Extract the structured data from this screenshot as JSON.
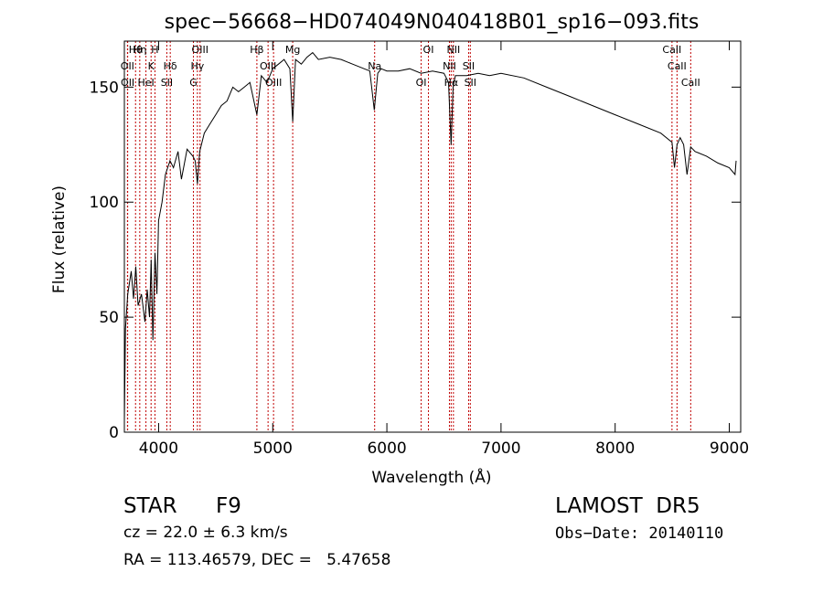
{
  "chart_data": {
    "type": "line",
    "title": "spec−56668−HD074049N040418B01_sp16−093.fits",
    "xlabel": "Wavelength (Å)",
    "ylabel": "Flux (relative)",
    "xlim": [
      3700,
      9100
    ],
    "ylim": [
      0,
      170
    ],
    "x_ticks": [
      4000,
      5000,
      6000,
      7000,
      8000,
      9000
    ],
    "y_ticks": [
      0,
      50,
      100,
      150
    ],
    "grid": false,
    "legend": "none",
    "colors": {
      "spectrum": "#000000",
      "line_markers": "#c00000",
      "axes": "#000000"
    },
    "series": [
      {
        "x": [
          3700,
          3710,
          3730,
          3760,
          3780,
          3800,
          3820,
          3850,
          3880,
          3900,
          3920,
          3935,
          3950,
          3968,
          3985,
          4000,
          4030,
          4060,
          4100,
          4130,
          4170,
          4200,
          4250,
          4300,
          4320,
          4340,
          4360,
          4400,
          4450,
          4500,
          4550,
          4600,
          4650,
          4700,
          4750,
          4800,
          4861,
          4900,
          4950,
          5000,
          5050,
          5100,
          5150,
          5175,
          5200,
          5250,
          5300,
          5350,
          5400,
          5500,
          5600,
          5700,
          5800,
          5850,
          5890,
          5920,
          5950,
          6000,
          6100,
          6200,
          6300,
          6400,
          6500,
          6540,
          6563,
          6580,
          6600,
          6700,
          6800,
          6900,
          7000,
          7200,
          7400,
          7600,
          7800,
          8000,
          8200,
          8400,
          8498,
          8520,
          8542,
          8570,
          8600,
          8630,
          8662,
          8700,
          8800,
          8900,
          9000,
          9050,
          9060
        ],
        "y": [
          5,
          45,
          60,
          70,
          58,
          72,
          55,
          60,
          48,
          62,
          50,
          75,
          40,
          78,
          60,
          92,
          100,
          112,
          118,
          115,
          122,
          110,
          123,
          120,
          118,
          108,
          122,
          130,
          134,
          138,
          142,
          144,
          150,
          148,
          150,
          152,
          138,
          155,
          152,
          158,
          160,
          162,
          158,
          135,
          162,
          160,
          163,
          165,
          162,
          163,
          162,
          160,
          158,
          157,
          140,
          156,
          158,
          157,
          157,
          158,
          156,
          157,
          156,
          152,
          125,
          150,
          155,
          155,
          156,
          155,
          156,
          154,
          150,
          146,
          142,
          138,
          134,
          130,
          126,
          115,
          125,
          128,
          125,
          112,
          124,
          122,
          120,
          117,
          115,
          112,
          118
        ]
      }
    ],
    "spectral_lines": [
      {
        "label": "Hθ",
        "wavelength": 3798
      },
      {
        "label": "OII",
        "wavelength": 3727
      },
      {
        "label": "OII",
        "wavelength": 3729
      },
      {
        "label": "Hη",
        "wavelength": 3835
      },
      {
        "label": "K",
        "wavelength": 3934
      },
      {
        "label": "HeI",
        "wavelength": 3889
      },
      {
        "label": "H",
        "wavelength": 3968
      },
      {
        "label": "Hδ",
        "wavelength": 4102
      },
      {
        "label": "SII",
        "wavelength": 4072
      },
      {
        "label": "OIII",
        "wavelength": 4363
      },
      {
        "label": "Hγ",
        "wavelength": 4340
      },
      {
        "label": "G",
        "wavelength": 4305
      },
      {
        "label": "Hβ",
        "wavelength": 4861
      },
      {
        "label": "OIII",
        "wavelength": 4959
      },
      {
        "label": "OIII",
        "wavelength": 5007
      },
      {
        "label": "Mg",
        "wavelength": 5175
      },
      {
        "label": "Na",
        "wavelength": 5893
      },
      {
        "label": "OI",
        "wavelength": 6300
      },
      {
        "label": "OI",
        "wavelength": 6364
      },
      {
        "label": "NII",
        "wavelength": 6548
      },
      {
        "label": "Hα",
        "wavelength": 6563
      },
      {
        "label": "NII",
        "wavelength": 6583
      },
      {
        "label": "SII",
        "wavelength": 6716
      },
      {
        "label": "SII",
        "wavelength": 6731
      },
      {
        "label": "CaII",
        "wavelength": 8498
      },
      {
        "label": "CaII",
        "wavelength": 8542
      },
      {
        "label": "CaII",
        "wavelength": 8662
      }
    ]
  },
  "info": {
    "object_class": "STAR",
    "subclass": "F9",
    "survey": "LAMOST  DR5",
    "cz": "cz = 22.0 ± 6.3 km/s",
    "obs_date": "Obs−Date: 20140110",
    "coords": "RA = 113.46579, DEC =   5.47658"
  }
}
